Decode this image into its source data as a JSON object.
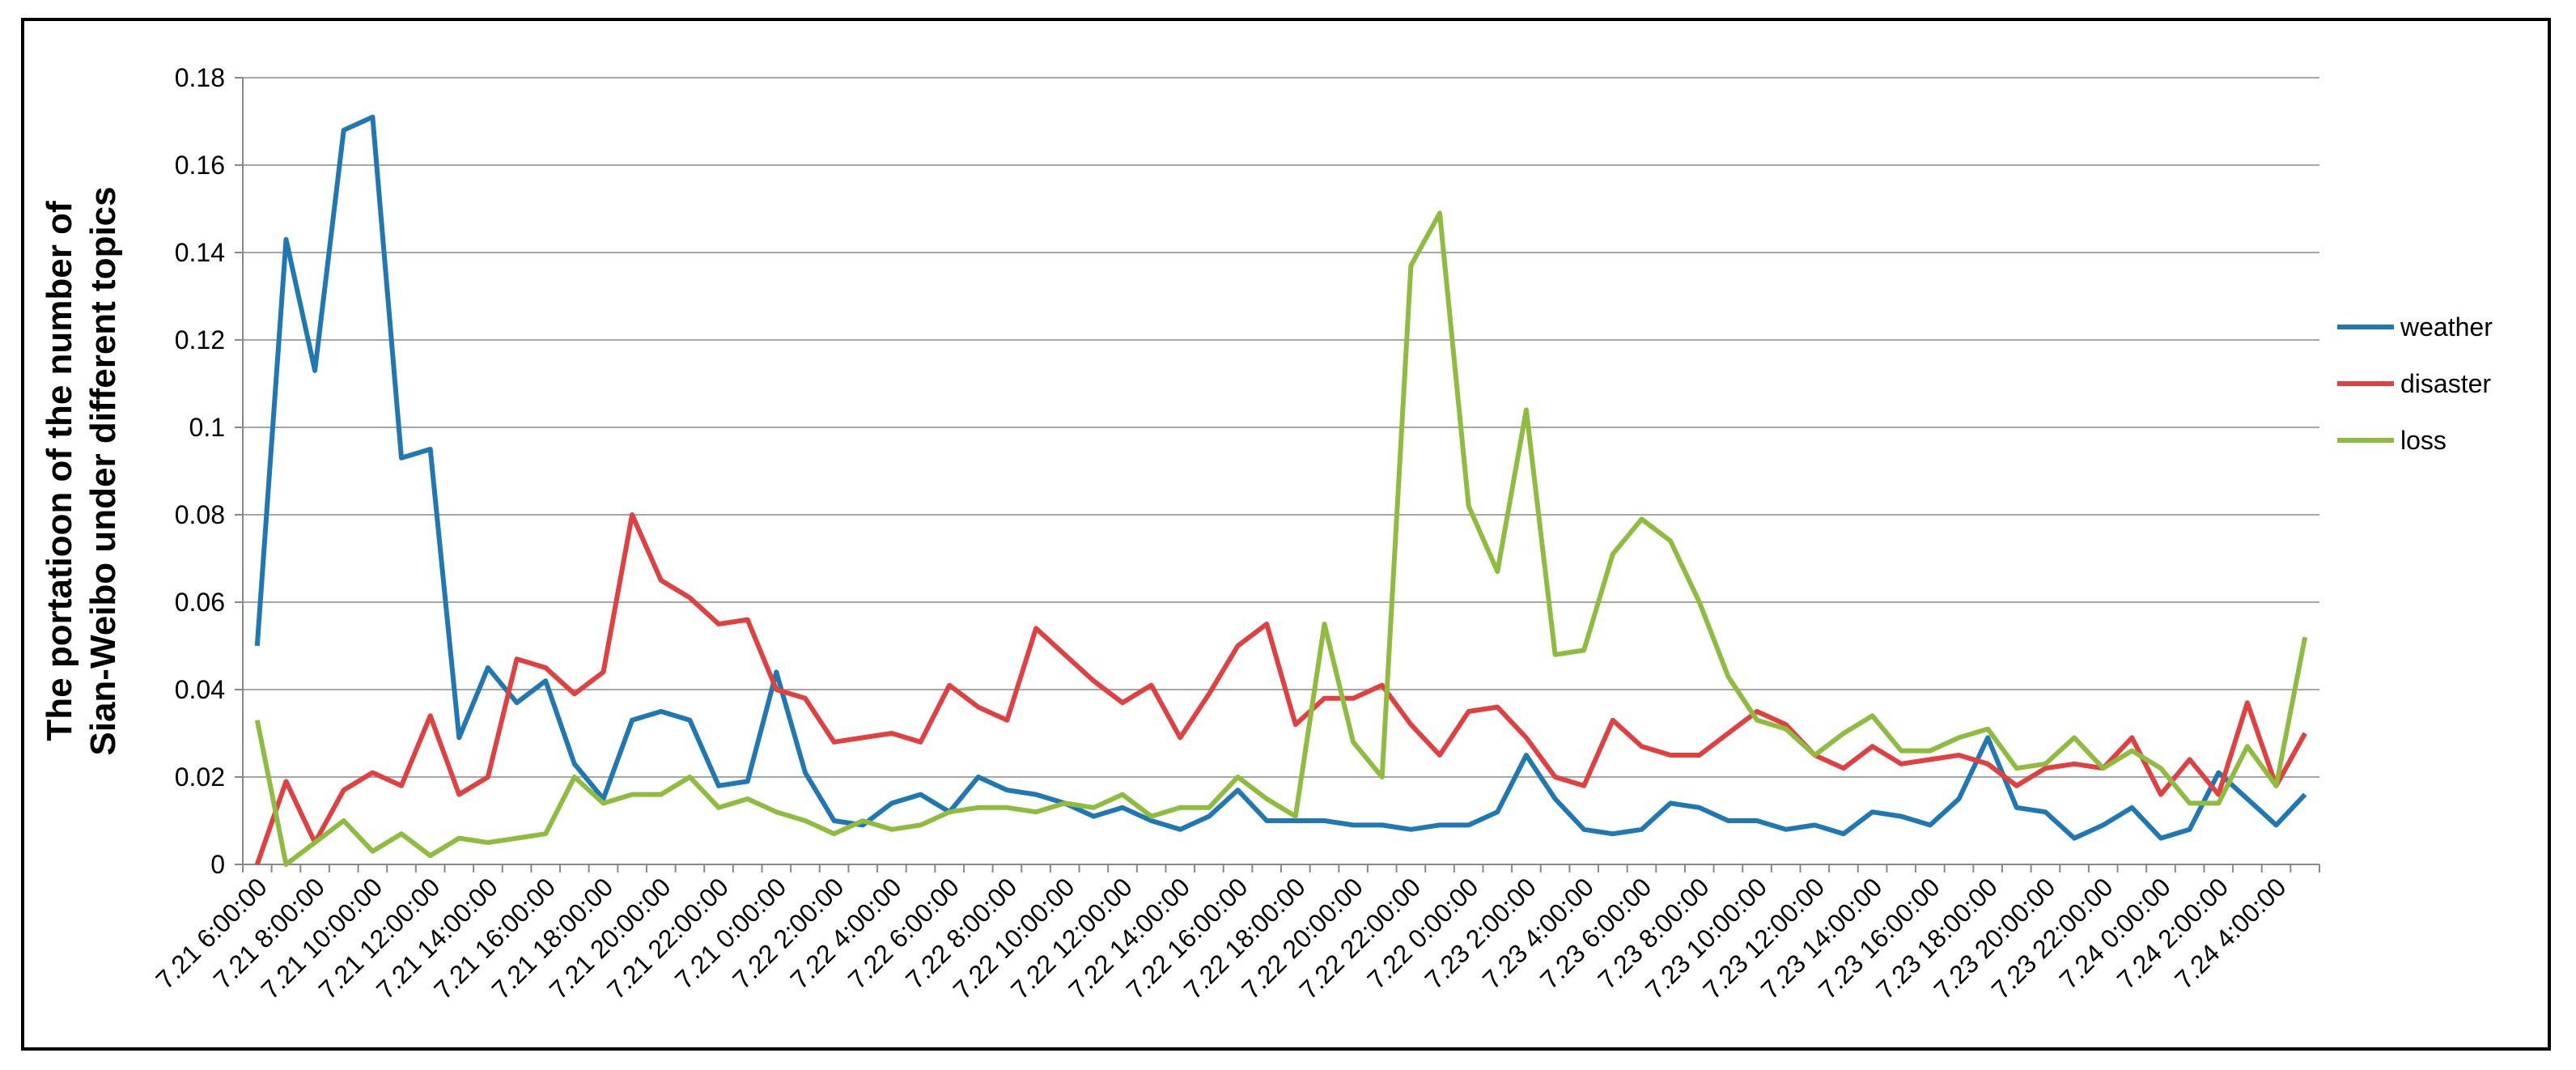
{
  "chart_data": {
    "type": "line",
    "title": "",
    "xlabel": "",
    "ylabel_lines": [
      "The portatioon of the number of",
      "Sian-Weibo under different topics"
    ],
    "ylim": [
      0,
      0.18
    ],
    "yticks": [
      "0",
      "0.02",
      "0.04",
      "0.06",
      "0.08",
      "0.1",
      "0.12",
      "0.14",
      "0.16",
      "0.18"
    ],
    "ytick_values": [
      0,
      0.02,
      0.04,
      0.06,
      0.08,
      0.1,
      0.12,
      0.14,
      0.16,
      0.18
    ],
    "grid": true,
    "legend_position": "right",
    "categories": [
      "7.21 6:00:00",
      "7.21 7:00:00",
      "7.21 8:00:00",
      "7.21 9:00:00",
      "7.21 10:00:00",
      "7.21 11:00:00",
      "7.21 12:00:00",
      "7.21 13:00:00",
      "7.21 14:00:00",
      "7.21 15:00:00",
      "7.21 16:00:00",
      "7.21 17:00:00",
      "7.21 18:00:00",
      "7.21 19:00:00",
      "7.21 20:00:00",
      "7.21 21:00:00",
      "7.21 22:00:00",
      "7.21 23:00:00",
      "7.21 0:00:00",
      "7.22 1:00:00",
      "7.22 2:00:00",
      "7.22 3:00:00",
      "7.22 4:00:00",
      "7.22 5:00:00",
      "7.22 6:00:00",
      "7.22 7:00:00",
      "7.22 8:00:00",
      "7.22 9:00:00",
      "7.22 10:00:00",
      "7.22 11:00:00",
      "7.22 12:00:00",
      "7.22 13:00:00",
      "7.22 14:00:00",
      "7.22 15:00:00",
      "7.22 16:00:00",
      "7.22 17:00:00",
      "7.22 18:00:00",
      "7.22 19:00:00",
      "7.22 20:00:00",
      "7.22 21:00:00",
      "7.22 22:00:00",
      "7.22 23:00:00",
      "7.22 0:00:00",
      "7.23 1:00:00",
      "7.23 2:00:00",
      "7.23 3:00:00",
      "7.23 4:00:00",
      "7.23 5:00:00",
      "7.23 6:00:00",
      "7.23 7:00:00",
      "7.23 8:00:00",
      "7.23 9:00:00",
      "7.23 10:00:00",
      "7.23 11:00:00",
      "7.23 12:00:00",
      "7.23 13:00:00",
      "7.23 14:00:00",
      "7.23 15:00:00",
      "7.23 16:00:00",
      "7.23 17:00:00",
      "7.23 18:00:00",
      "7.23 19:00:00",
      "7.23 20:00:00",
      "7.23 21:00:00",
      "7.23 22:00:00",
      "7.23 23:00:00",
      "7.24 0:00:00",
      "7.24 1:00:00",
      "7.24 2:00:00",
      "7.24 3:00:00",
      "7.24 4:00:00",
      "7.24 5:00:00"
    ],
    "tick_every": 2,
    "series": [
      {
        "name": "weather",
        "color": "#1f77b4",
        "values": [
          0.05,
          0.143,
          0.113,
          0.168,
          0.171,
          0.093,
          0.095,
          0.029,
          0.045,
          0.037,
          0.042,
          0.023,
          0.015,
          0.033,
          0.035,
          0.033,
          0.018,
          0.019,
          0.044,
          0.021,
          0.01,
          0.009,
          0.014,
          0.016,
          0.012,
          0.02,
          0.017,
          0.016,
          0.014,
          0.011,
          0.013,
          0.01,
          0.008,
          0.011,
          0.017,
          0.01,
          0.01,
          0.01,
          0.009,
          0.009,
          0.008,
          0.009,
          0.009,
          0.012,
          0.025,
          0.015,
          0.008,
          0.007,
          0.008,
          0.014,
          0.013,
          0.01,
          0.01,
          0.008,
          0.009,
          0.007,
          0.012,
          0.011,
          0.009,
          0.015,
          0.029,
          0.013,
          0.012,
          0.006,
          0.009,
          0.013,
          0.006,
          0.008,
          0.021,
          0.015,
          0.009,
          0.016
        ]
      },
      {
        "name": "disaster",
        "color": "#e04040",
        "values": [
          0.0,
          0.019,
          0.005,
          0.017,
          0.021,
          0.018,
          0.034,
          0.016,
          0.02,
          0.047,
          0.045,
          0.039,
          0.044,
          0.08,
          0.065,
          0.061,
          0.055,
          0.056,
          0.04,
          0.038,
          0.028,
          0.029,
          0.03,
          0.028,
          0.041,
          0.036,
          0.033,
          0.054,
          0.048,
          0.042,
          0.037,
          0.041,
          0.029,
          0.039,
          0.05,
          0.055,
          0.032,
          0.038,
          0.038,
          0.041,
          0.032,
          0.025,
          0.035,
          0.036,
          0.029,
          0.02,
          0.018,
          0.033,
          0.027,
          0.025,
          0.025,
          0.03,
          0.035,
          0.032,
          0.025,
          0.022,
          0.027,
          0.023,
          0.024,
          0.025,
          0.023,
          0.018,
          0.022,
          0.023,
          0.022,
          0.029,
          0.016,
          0.024,
          0.016,
          0.037,
          0.018,
          0.03
        ]
      },
      {
        "name": "loss",
        "color": "#8fbc3f",
        "values": [
          0.033,
          0.0,
          0.005,
          0.01,
          0.003,
          0.007,
          0.002,
          0.006,
          0.005,
          0.006,
          0.007,
          0.02,
          0.014,
          0.016,
          0.016,
          0.02,
          0.013,
          0.015,
          0.012,
          0.01,
          0.007,
          0.01,
          0.008,
          0.009,
          0.012,
          0.013,
          0.013,
          0.012,
          0.014,
          0.013,
          0.016,
          0.011,
          0.013,
          0.013,
          0.02,
          0.015,
          0.011,
          0.055,
          0.028,
          0.02,
          0.137,
          0.149,
          0.082,
          0.067,
          0.104,
          0.048,
          0.049,
          0.071,
          0.079,
          0.074,
          0.06,
          0.043,
          0.033,
          0.031,
          0.025,
          0.03,
          0.034,
          0.026,
          0.026,
          0.029,
          0.031,
          0.022,
          0.023,
          0.029,
          0.022,
          0.026,
          0.022,
          0.014,
          0.014,
          0.027,
          0.018,
          0.052
        ]
      }
    ]
  }
}
